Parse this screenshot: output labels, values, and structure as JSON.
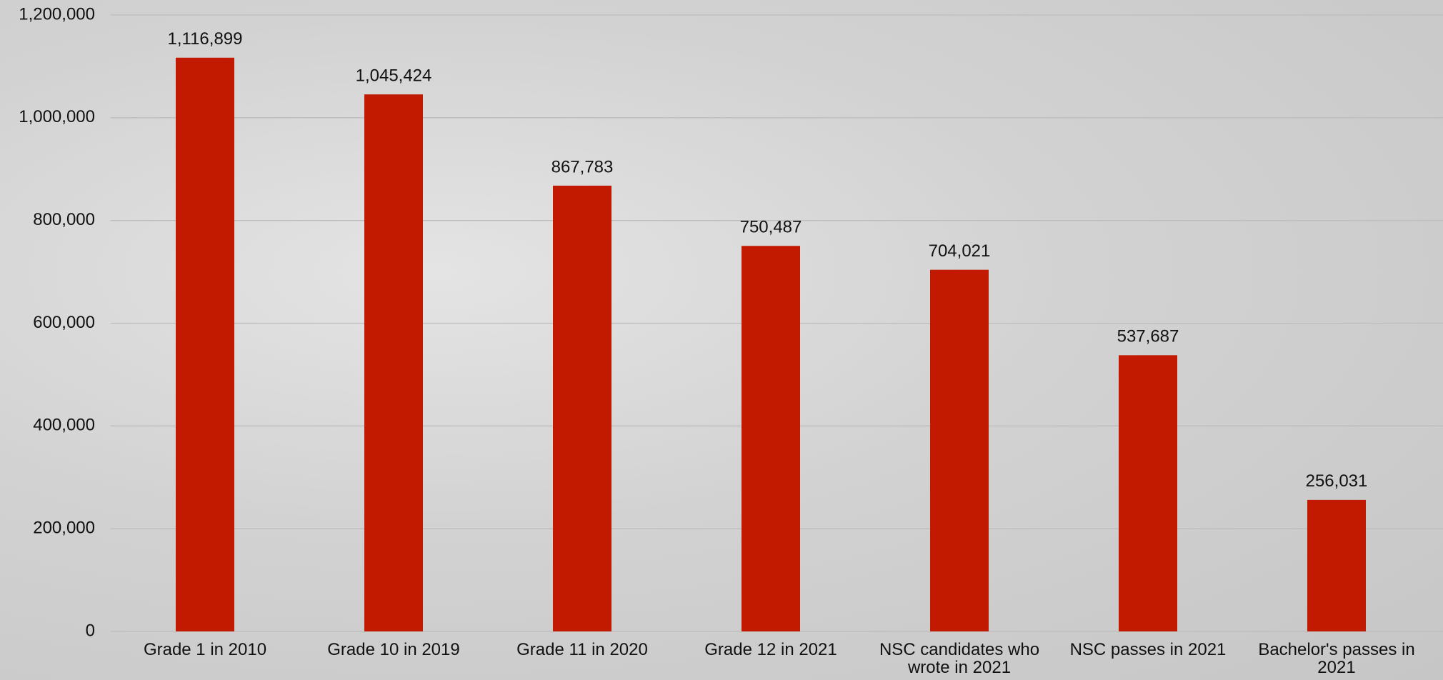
{
  "chart_data": {
    "type": "bar",
    "categories": [
      "Grade 1 in 2010",
      "Grade 10 in 2019",
      "Grade 11 in 2020",
      "Grade 12 in 2021",
      "NSC candidates who wrote in 2021",
      "NSC passes in 2021",
      "Bachelor's passes in 2021"
    ],
    "values": [
      1116899,
      1045424,
      867783,
      750487,
      704021,
      537687,
      256031
    ],
    "value_labels": [
      "1,116,899",
      "1,045,424",
      "867,783",
      "750,487",
      "704,021",
      "537,687",
      "256,031"
    ],
    "color": "#c11a00",
    "ylim": [
      0,
      1200000
    ],
    "yticks": [
      0,
      {
        "value": 200000,
        "label": "200,000"
      },
      {
        "value": 400000,
        "label": "400,000"
      },
      {
        "value": 600000,
        "label": "600,000"
      },
      {
        "value": 800000,
        "label": "800,000"
      },
      {
        "value": 1000000,
        "label": "1,000,000"
      },
      {
        "value": 1200000,
        "label": "1,200,000"
      }
    ],
    "grid": true
  }
}
